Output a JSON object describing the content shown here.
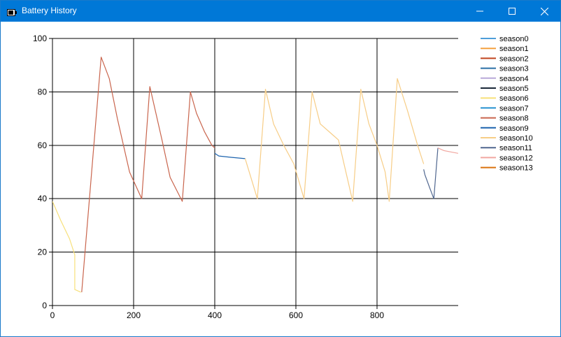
{
  "window": {
    "title": "Battery History",
    "icon": "battery-app-icon",
    "controls": [
      "minimize-icon",
      "maximize-icon",
      "close-icon"
    ]
  },
  "chart_data": {
    "type": "line",
    "xlim": [
      0,
      1000
    ],
    "ylim": [
      0,
      100
    ],
    "x_ticks": [
      "0",
      "200",
      "400",
      "600",
      "800"
    ],
    "y_ticks": [
      "0",
      "20",
      "40",
      "60",
      "80",
      "100"
    ],
    "grid": true,
    "legend_position": "right",
    "series": [
      {
        "name": "season0",
        "color": "#4e9ed9",
        "points": []
      },
      {
        "name": "season1",
        "color": "#f4a140",
        "points": []
      },
      {
        "name": "season2",
        "color": "#c0441e",
        "points": []
      },
      {
        "name": "season3",
        "color": "#2a6fa6",
        "points": []
      },
      {
        "name": "season4",
        "color": "#b8a8d8",
        "points": []
      },
      {
        "name": "season5",
        "color": "#1b2838",
        "points": []
      },
      {
        "name": "season6",
        "color": "#f7e07a",
        "points": [
          [
            0,
            39
          ],
          [
            20,
            32
          ],
          [
            42,
            25
          ],
          [
            55,
            19
          ],
          [
            55,
            6
          ],
          [
            70,
            5
          ]
        ]
      },
      {
        "name": "season7",
        "color": "#2590d0",
        "points": []
      },
      {
        "name": "season8",
        "color": "#c9654d",
        "points": [
          [
            72,
            5
          ],
          [
            120,
            93
          ],
          [
            140,
            85
          ],
          [
            160,
            70
          ],
          [
            190,
            50
          ],
          [
            220,
            40
          ],
          [
            240,
            82
          ],
          [
            255,
            72
          ],
          [
            270,
            62
          ],
          [
            290,
            48
          ],
          [
            320,
            39
          ],
          [
            340,
            80
          ],
          [
            355,
            72
          ],
          [
            375,
            65
          ],
          [
            393,
            60
          ],
          [
            400,
            59
          ]
        ]
      },
      {
        "name": "season9",
        "color": "#1c63ae",
        "points": [
          [
            400,
            57
          ],
          [
            410,
            56
          ],
          [
            440,
            55.5
          ],
          [
            475,
            55
          ]
        ]
      },
      {
        "name": "season10",
        "color": "#f7cd86",
        "points": [
          [
            475,
            55
          ],
          [
            505,
            40
          ],
          [
            525,
            81
          ],
          [
            545,
            68
          ],
          [
            570,
            60
          ],
          [
            595,
            53
          ],
          [
            620,
            40
          ],
          [
            640,
            80
          ],
          [
            660,
            68
          ],
          [
            690,
            64
          ],
          [
            705,
            62
          ],
          [
            740,
            39
          ],
          [
            760,
            81
          ],
          [
            780,
            68
          ],
          [
            800,
            60
          ],
          [
            820,
            50
          ],
          [
            830,
            39
          ],
          [
            850,
            85
          ],
          [
            875,
            73
          ],
          [
            900,
            60
          ],
          [
            915,
            53
          ]
        ]
      },
      {
        "name": "season11",
        "color": "#50678f",
        "points": [
          [
            915,
            51
          ],
          [
            918,
            49
          ],
          [
            930,
            44
          ],
          [
            940,
            40
          ],
          [
            950,
            59
          ]
        ]
      },
      {
        "name": "season12",
        "color": "#f1a7a0",
        "points": [
          [
            950,
            59
          ],
          [
            965,
            58
          ],
          [
            1000,
            57
          ]
        ]
      },
      {
        "name": "season13",
        "color": "#d9720e",
        "points": []
      }
    ]
  }
}
